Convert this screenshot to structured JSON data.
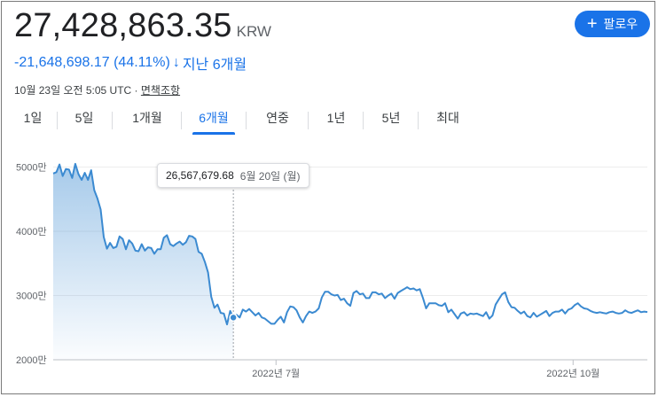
{
  "quote": {
    "price": "27,428,863.35",
    "currency": "KRW",
    "change": "-21,648,698.17 (44.11%)",
    "change_arrow": "↓",
    "change_period": "지난 6개월",
    "timestamp": "10월 23일 오전 5:05 UTC ·",
    "disclaimer": "면책조항"
  },
  "follow_button": {
    "icon": "plus-icon",
    "label": "팔로우"
  },
  "tabs": [
    {
      "label": "1일"
    },
    {
      "label": "5일"
    },
    {
      "label": "1개월"
    },
    {
      "label": "6개월",
      "active": true
    },
    {
      "label": "연중"
    },
    {
      "label": "1년"
    },
    {
      "label": "5년"
    },
    {
      "label": "최대"
    }
  ],
  "tooltip": {
    "value": "26,567,679.68",
    "date": "6월 20일 (월)"
  },
  "colors": {
    "accent": "#1a73e8",
    "line": "#3b8ad1"
  },
  "chart_data": {
    "type": "area",
    "y_tick_labels": [
      "5000만",
      "4000만",
      "3000만",
      "2000만"
    ],
    "y_ticks": [
      50000000,
      40000000,
      30000000,
      20000000
    ],
    "ylim": [
      20000000,
      52000000
    ],
    "x_tick_labels": [
      "2022년 7월",
      "2022년 10월"
    ],
    "x_ticks": [
      0.375,
      0.875
    ],
    "highlight_index": 57,
    "series": [
      {
        "values": [
          49000000,
          49200000,
          50400000,
          48600000,
          49700000,
          49600000,
          48300000,
          50500000,
          48900000,
          48000000,
          49100000,
          48000000,
          49500000,
          46400000,
          45100000,
          43400000,
          39100000,
          37300000,
          38200000,
          37400000,
          37600000,
          39200000,
          38800000,
          37200000,
          38600000,
          38100000,
          37000000,
          36900000,
          38000000,
          37000000,
          37500000,
          37400000,
          36500000,
          37200000,
          37200000,
          39000000,
          39400000,
          38000000,
          37700000,
          38100000,
          38400000,
          37900000,
          38300000,
          39300000,
          39200000,
          38800000,
          36800000,
          36500000,
          35200000,
          33600000,
          29800000,
          28100000,
          28600000,
          27300000,
          27200000,
          25500000,
          27600000,
          26570000,
          27000000,
          26600000,
          27800000,
          27500000,
          27900000,
          27400000,
          26900000,
          27300000,
          26600000,
          26400000,
          26000000,
          25600000,
          25600000,
          26200000,
          26700000,
          25800000,
          27400000,
          28300000,
          28200000,
          27700000,
          26600000,
          25800000,
          26800000,
          27500000,
          27300000,
          27500000,
          28000000,
          29700000,
          30600000,
          30600000,
          30200000,
          30000000,
          30100000,
          29300000,
          29500000,
          28800000,
          28400000,
          30400000,
          30700000,
          30200000,
          30300000,
          29600000,
          29600000,
          30500000,
          30500000,
          30200000,
          30300000,
          29600000,
          30000000,
          30300000,
          29500000,
          30400000,
          30700000,
          31000000,
          31300000,
          31000000,
          31100000,
          30800000,
          31000000,
          29600000,
          28000000,
          28800000,
          28800000,
          28800000,
          28500000,
          28400000,
          28800000,
          27400000,
          27800000,
          27100000,
          26400000,
          27200000,
          27400000,
          26900000,
          27200000,
          27100000,
          27200000,
          27000000,
          26800000,
          27400000,
          26400000,
          26900000,
          28600000,
          29400000,
          30200000,
          30500000,
          29000000,
          28200000,
          28100000,
          27600000,
          27200000,
          27500000,
          26800000,
          26600000,
          27300000,
          26700000,
          27000000,
          27300000,
          27600000,
          26800000,
          27300000,
          27500000,
          27500000,
          27800000,
          27200000,
          27800000,
          28000000,
          28500000,
          28800000,
          28300000,
          28000000,
          27900000,
          27600000,
          27400000,
          27300000,
          27400000,
          27300000,
          27200000,
          27400000,
          27500000,
          27300000,
          27200000,
          27300000,
          27700000,
          27400000,
          27300000,
          27500000,
          27700000,
          27400000,
          27500000,
          27429000
        ]
      }
    ]
  }
}
